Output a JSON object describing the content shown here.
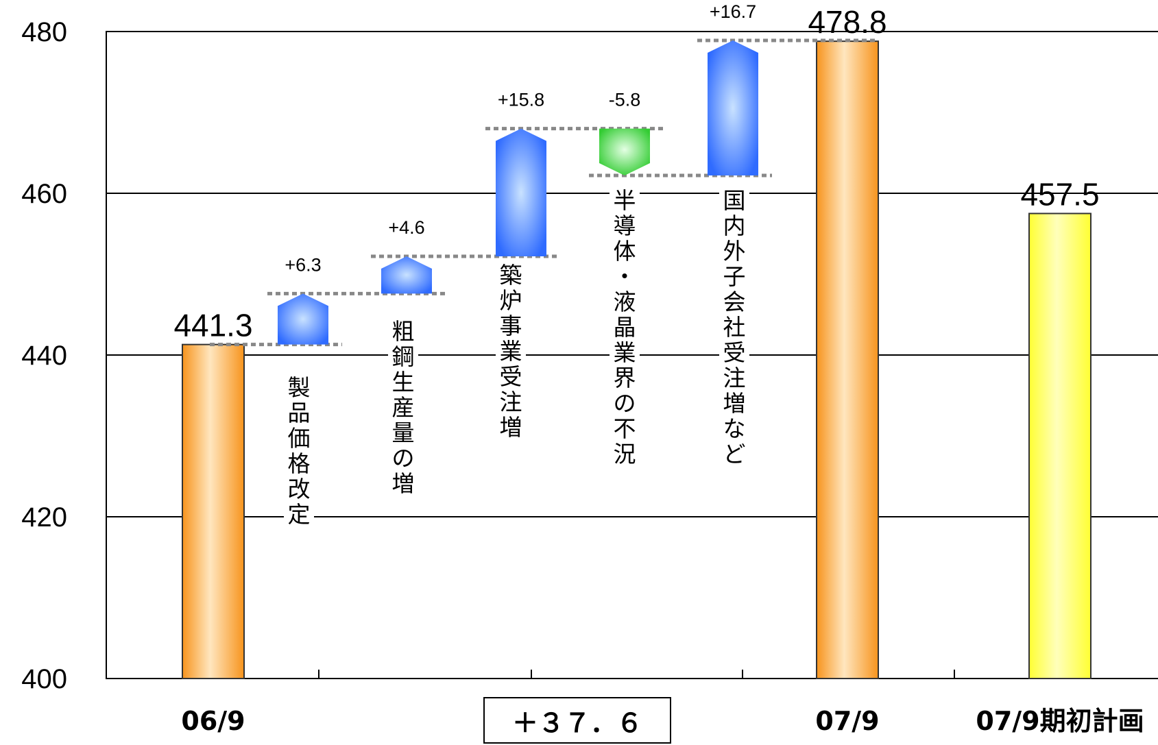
{
  "chart_data": {
    "type": "bar",
    "subtype": "waterfall",
    "ylim": [
      400,
      480
    ],
    "yticks": [
      400,
      420,
      440,
      460,
      480
    ],
    "grid": true,
    "bars": [
      {
        "label": "06/9",
        "value": 441.3,
        "value_label": "441.3",
        "color": "#F7941D"
      },
      {
        "label": "07/9",
        "value": 478.8,
        "value_label": "478.8",
        "color": "#F7941D"
      },
      {
        "label": "07/9期初計画",
        "value": 457.5,
        "value_label": "457.5",
        "color": "#FFFF33"
      }
    ],
    "steps": [
      {
        "text": "製品価格改定",
        "delta": 6.3,
        "delta_label": "+6.3"
      },
      {
        "text": "粗鋼生産量の増",
        "delta": 4.6,
        "delta_label": "+4.6"
      },
      {
        "text": "築炉事業受注増",
        "delta": 15.8,
        "delta_label": "+15.8"
      },
      {
        "text": "半導体・液晶業界の不況",
        "delta": -5.8,
        "delta_label": "-5.8"
      },
      {
        "text": "国内外子会社受注増など",
        "delta": 16.7,
        "delta_label": "+16.7"
      }
    ],
    "total_change_label": "＋３７．６",
    "colors": {
      "increase": "#2F6BFF",
      "decrease": "#33CC33",
      "connector": "#888888"
    }
  }
}
